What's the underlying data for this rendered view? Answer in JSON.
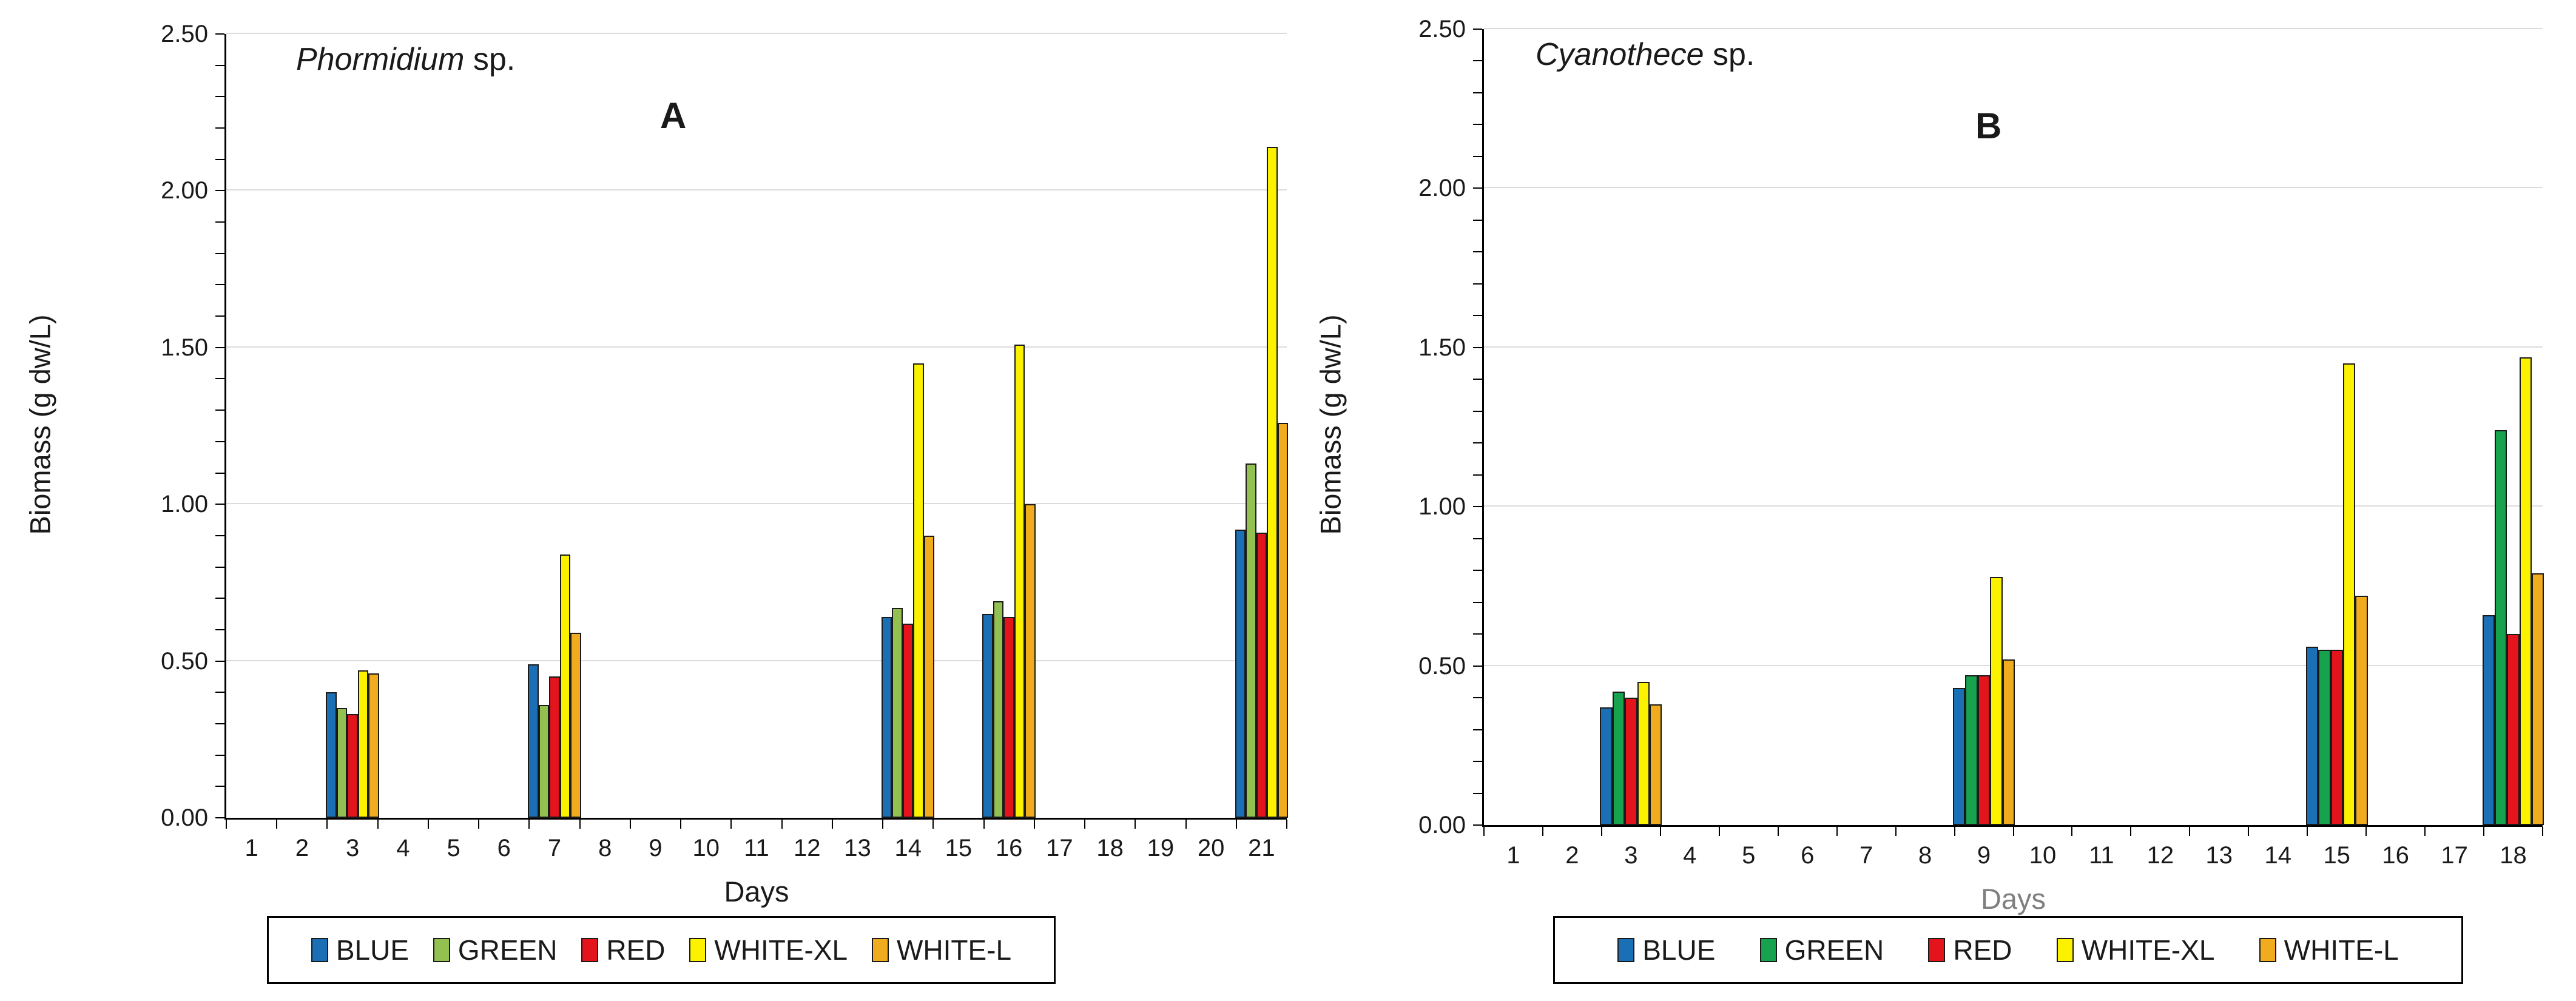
{
  "colors": {
    "background": "#ffffff",
    "axis": "#000000",
    "gridline": "#dcdcdc",
    "bar_border": "#1a1a1a",
    "text": "#1a1a1a",
    "days_label_panel_b": "#7f7f7f"
  },
  "chart_data": [
    {
      "type": "bar",
      "panel_letter": "A",
      "title_genus": "Phormidium",
      "title_suffix": " sp.",
      "ylabel": "Biomass (g dw/L)",
      "xlabel": "Days",
      "ylim": [
        0,
        2.5
      ],
      "y_minor_tick_step": 0.1,
      "grid": "horizontal",
      "legend_position": "bottom",
      "y_ticks": [
        "0.00",
        "0.50",
        "1.00",
        "1.50",
        "2.00",
        "2.50"
      ],
      "x_ticks": [
        "1",
        "2",
        "3",
        "4",
        "5",
        "6",
        "7",
        "8",
        "9",
        "10",
        "11",
        "12",
        "13",
        "14",
        "15",
        "16",
        "17",
        "18",
        "19",
        "20",
        "21"
      ],
      "series": [
        {
          "name": "BLUE",
          "color": "#1b6fb5"
        },
        {
          "name": "GREEN",
          "color": "#92c152"
        },
        {
          "name": "RED",
          "color": "#e3141c"
        },
        {
          "name": "WHITE-XL",
          "color": "#fcf200"
        },
        {
          "name": "WHITE-L",
          "color": "#f0ab1e"
        }
      ],
      "groups": [
        {
          "day": 3,
          "values": [
            0.4,
            0.35,
            0.33,
            0.47,
            0.46
          ]
        },
        {
          "day": 7,
          "values": [
            0.49,
            0.36,
            0.45,
            0.84,
            0.59
          ]
        },
        {
          "day": 14,
          "values": [
            0.64,
            0.67,
            0.62,
            1.45,
            0.9
          ]
        },
        {
          "day": 16,
          "values": [
            0.65,
            0.69,
            0.64,
            1.51,
            1.0
          ]
        },
        {
          "day": 21,
          "values": [
            0.92,
            1.13,
            0.91,
            2.14,
            1.26
          ]
        }
      ]
    },
    {
      "type": "bar",
      "panel_letter": "B",
      "title_genus": "Cyanothece",
      "title_suffix": " sp.",
      "ylabel": "Biomass (g dw/L)",
      "xlabel": "Days",
      "ylim": [
        0,
        2.5
      ],
      "y_minor_tick_step": 0.1,
      "grid": "horizontal",
      "legend_position": "bottom",
      "y_ticks": [
        "0.00",
        "0.50",
        "1.00",
        "1.50",
        "2.00",
        "2.50"
      ],
      "x_ticks": [
        "1",
        "2",
        "3",
        "4",
        "5",
        "6",
        "7",
        "8",
        "9",
        "10",
        "11",
        "12",
        "13",
        "14",
        "15",
        "16",
        "17",
        "18"
      ],
      "series": [
        {
          "name": "BLUE",
          "color": "#1b6fb5"
        },
        {
          "name": "GREEN",
          "color": "#17a24e"
        },
        {
          "name": "RED",
          "color": "#e3141c"
        },
        {
          "name": "WHITE-XL",
          "color": "#fcf200"
        },
        {
          "name": "WHITE-L",
          "color": "#f0ab1e"
        }
      ],
      "groups": [
        {
          "day": 3,
          "values": [
            0.37,
            0.42,
            0.4,
            0.45,
            0.38
          ]
        },
        {
          "day": 9,
          "values": [
            0.43,
            0.47,
            0.47,
            0.78,
            0.52
          ]
        },
        {
          "day": 15,
          "values": [
            0.56,
            0.55,
            0.55,
            1.45,
            0.72
          ]
        },
        {
          "day": 18,
          "values": [
            0.66,
            1.24,
            0.6,
            1.47,
            0.79
          ]
        }
      ]
    }
  ]
}
